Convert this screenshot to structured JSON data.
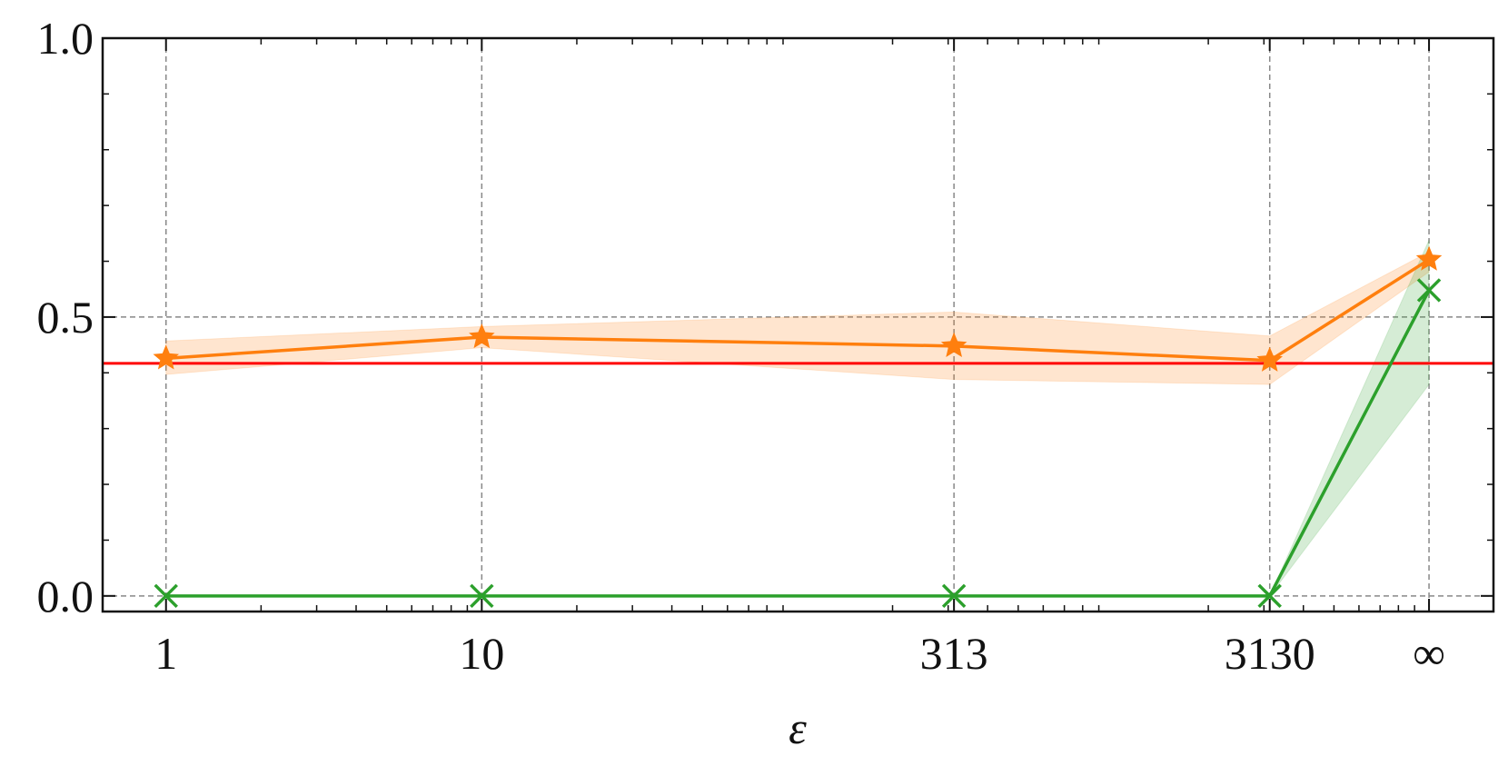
{
  "chart_data": {
    "type": "line",
    "x_label": "ε",
    "x": [
      1,
      10,
      313,
      3130,
      10000
    ],
    "xlim": [
      0.63,
      16000
    ],
    "xticks": [
      1,
      10,
      313,
      3130,
      {
        "value": 10000,
        "label": "∞"
      }
    ],
    "xminorticks": [
      2,
      3,
      4,
      5,
      6,
      7,
      8,
      9,
      20,
      30,
      40,
      50,
      60,
      70,
      80,
      90,
      200,
      300,
      400,
      500,
      600,
      700,
      800,
      900,
      2000,
      3000,
      4000,
      5000,
      6000,
      7000,
      8000,
      9000
    ],
    "xscale": "log",
    "ylim": [
      -0.028,
      1.0
    ],
    "yticks": [
      {
        "value": 0,
        "label": "0.0"
      },
      0.5,
      {
        "value": 1,
        "label": "1.0"
      }
    ],
    "yminorticks": [
      0.1,
      0.2,
      0.3,
      0.4,
      0.6,
      0.7,
      0.8,
      0.9
    ],
    "grid": true,
    "series": [
      {
        "color": "#ff7f0e",
        "marker": "star",
        "values": [
          0.426,
          0.464,
          0.448,
          0.422,
          0.603
        ],
        "upper": [
          0.457,
          0.483,
          0.509,
          0.466,
          0.617
        ],
        "lower": [
          0.397,
          0.445,
          0.388,
          0.379,
          0.581
        ]
      },
      {
        "color": "#2ca02c",
        "marker": "x",
        "values": [
          0,
          0,
          0,
          0,
          0.548
        ],
        "upper": [
          0,
          0,
          0,
          0,
          0.638
        ],
        "lower": [
          0,
          0,
          0,
          0,
          0.379
        ]
      }
    ],
    "reference_line": {
      "value": 0.417,
      "color": "#ff0000"
    }
  }
}
